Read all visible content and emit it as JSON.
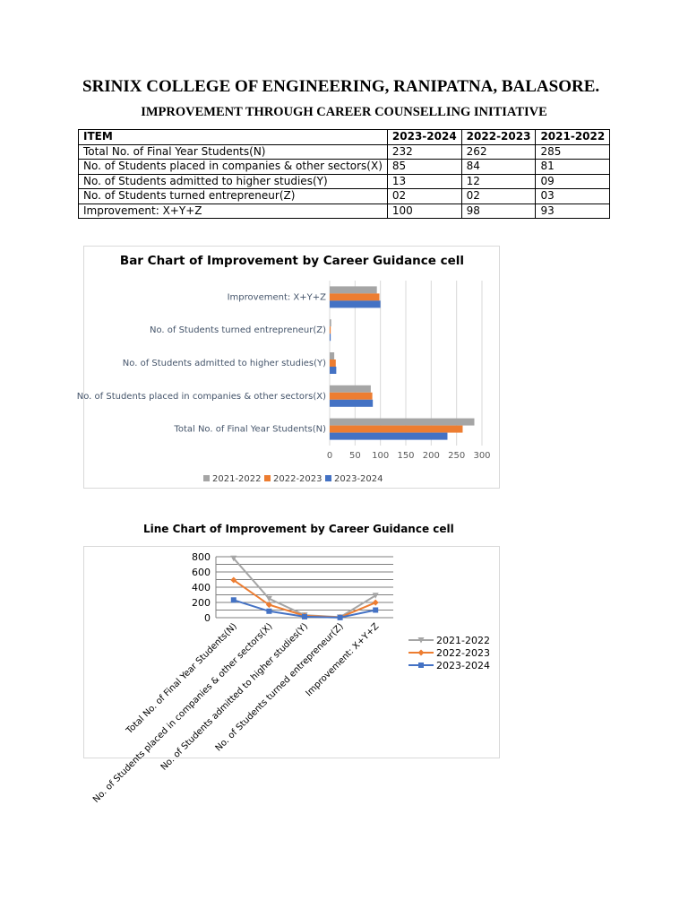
{
  "header": {
    "college": "SRINIX COLLEGE OF ENGINEERING, RANIPATNA, BALASORE.",
    "subtitle": "IMPROVEMENT THROUGH CAREER COUNSELLING INITIATIVE"
  },
  "table": {
    "headers": [
      "ITEM",
      "2023-2024",
      "2022-2023",
      "2021-2022"
    ],
    "rows": [
      [
        "Total No. of Final Year Students(N)",
        "232",
        "262",
        "285"
      ],
      [
        "No. of Students placed in companies & other sectors(X)",
        "85",
        "84",
        "81"
      ],
      [
        "No. of Students admitted to higher studies(Y)",
        "13",
        "12",
        "09"
      ],
      [
        "No. of Students turned entrepreneur(Z)",
        "02",
        "02",
        "03"
      ],
      [
        "Improvement: X+Y+Z",
        "100",
        "98",
        "93"
      ]
    ]
  },
  "colors": {
    "y2021": "#a5a5a5",
    "y2022": "#ed7d31",
    "y2023": "#4472c4",
    "grid": "#d9d9d9",
    "line_grid": "#7f7f7f"
  },
  "chart_data": [
    {
      "type": "bar",
      "orientation": "horizontal",
      "title": "Bar Chart of Improvement by Career Guidance cell",
      "categories": [
        "Total No. of Final Year Students(N)",
        "No. of Students placed in companies & other sectors(X)",
        "No. of Students admitted to higher studies(Y)",
        "No. of Students turned entrepreneur(Z)",
        "Improvement: X+Y+Z"
      ],
      "series": [
        {
          "name": "2021-2022",
          "values": [
            285,
            81,
            9,
            3,
            93
          ]
        },
        {
          "name": "2022-2023",
          "values": [
            262,
            84,
            12,
            2,
            98
          ]
        },
        {
          "name": "2023-2024",
          "values": [
            232,
            85,
            13,
            2,
            100
          ]
        }
      ],
      "xlim": [
        0,
        300
      ],
      "xticks": [
        0,
        50,
        100,
        150,
        200,
        250,
        300
      ],
      "grid": true,
      "legend": "bottom"
    },
    {
      "type": "line",
      "stacked": true,
      "title": "Line Chart of Improvement by Career Guidance cell",
      "categories": [
        "Total No. of Final Year Students(N)",
        "No. of Students placed in companies & other sectors(X)",
        "No. of Students admitted to higher studies(Y)",
        "No. of Students turned entrepreneur(Z)",
        "Improvement: X+Y+Z"
      ],
      "series": [
        {
          "name": "2021-2022",
          "values": [
            285,
            81,
            9,
            3,
            93
          ]
        },
        {
          "name": "2022-2023",
          "values": [
            262,
            84,
            12,
            2,
            98
          ]
        },
        {
          "name": "2023-2024",
          "values": [
            232,
            85,
            13,
            2,
            100
          ]
        }
      ],
      "ylim": [
        0,
        800
      ],
      "yticks": [
        0,
        200,
        400,
        600,
        800
      ],
      "grid": true,
      "legend": "right"
    }
  ]
}
